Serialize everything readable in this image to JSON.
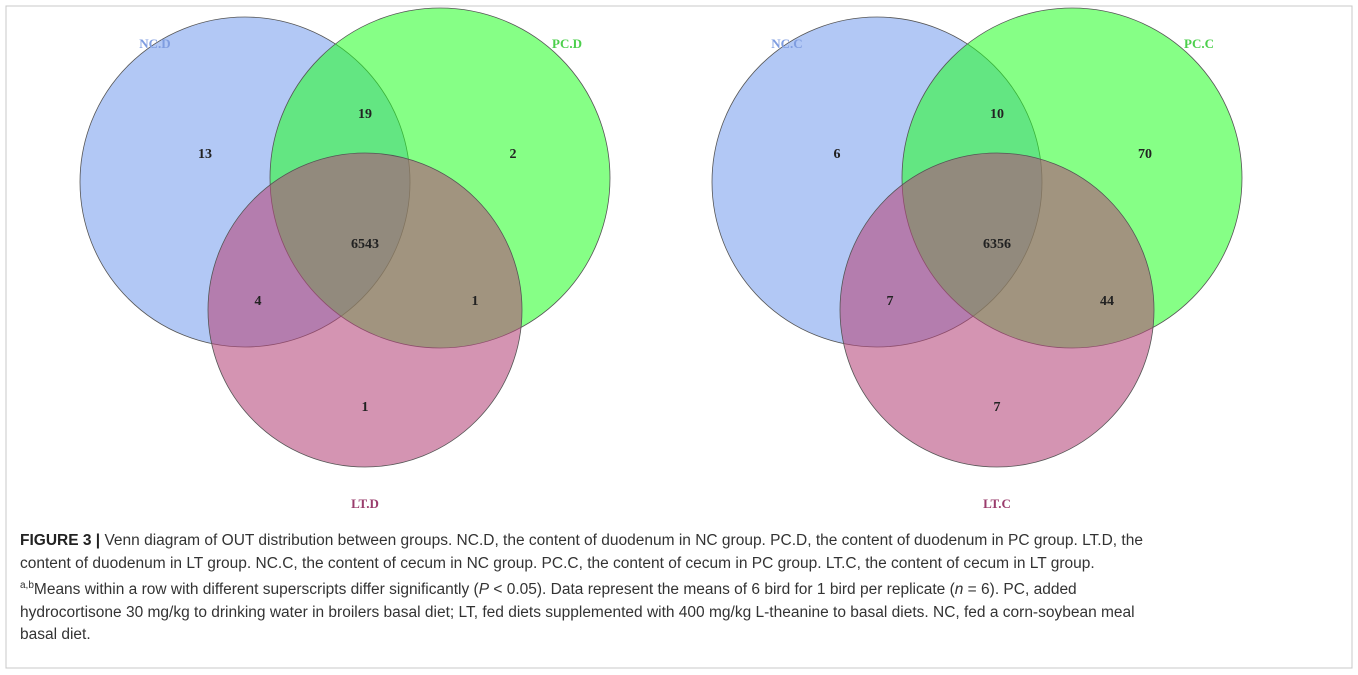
{
  "figure": {
    "venns": [
      {
        "sets": [
          "NC.D",
          "PC.D",
          "LT.D"
        ],
        "regions": [
          13,
          19,
          2,
          6543,
          4,
          1,
          1
        ]
      },
      {
        "sets": [
          "NC.C",
          "PC.C",
          "LT.C"
        ],
        "regions": [
          6,
          10,
          70,
          6356,
          7,
          44,
          7
        ]
      }
    ],
    "caption": [
      "FIGURE 3 |",
      " Venn diagram of OUT distribution between groups. NC.D, the content of duodenum in NC group. PC.D, the content of duodenum in PC group. LT.D, the",
      "content of duodenum in LT group. NC.C, the content of cecum in NC group. PC.C, the content of cecum in PC group. LT.C, the content of cecum in LT group.",
      "a,b",
      "Means within a row with different superscripts differ significantly (",
      "P",
      " < 0.05). Data represent the means of 6 bird for 1 bird per replicate (",
      "n",
      " = 6). PC, added",
      "hydrocortisone 30 mg/kg to drinking water in broilers basal diet; LT, fed diets supplemented with 400 mg/kg L-theanine to basal diets. NC, fed a corn-soybean meal",
      "basal diet."
    ]
  }
}
